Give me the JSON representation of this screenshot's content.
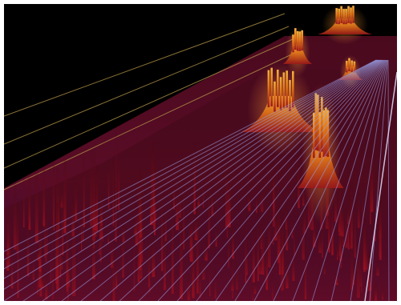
{
  "visualization": {
    "kind": "3d-spectrogram-waterfall",
    "colors": {
      "background": "#000000",
      "frame": "#ffffff",
      "grid_line": "#9aa0e8",
      "back_rail": "#b89a4a",
      "low": "#2a0a5a",
      "mid": "#8a0e1e",
      "high": "#d14a12",
      "peak": "#f2a030"
    }
  }
}
